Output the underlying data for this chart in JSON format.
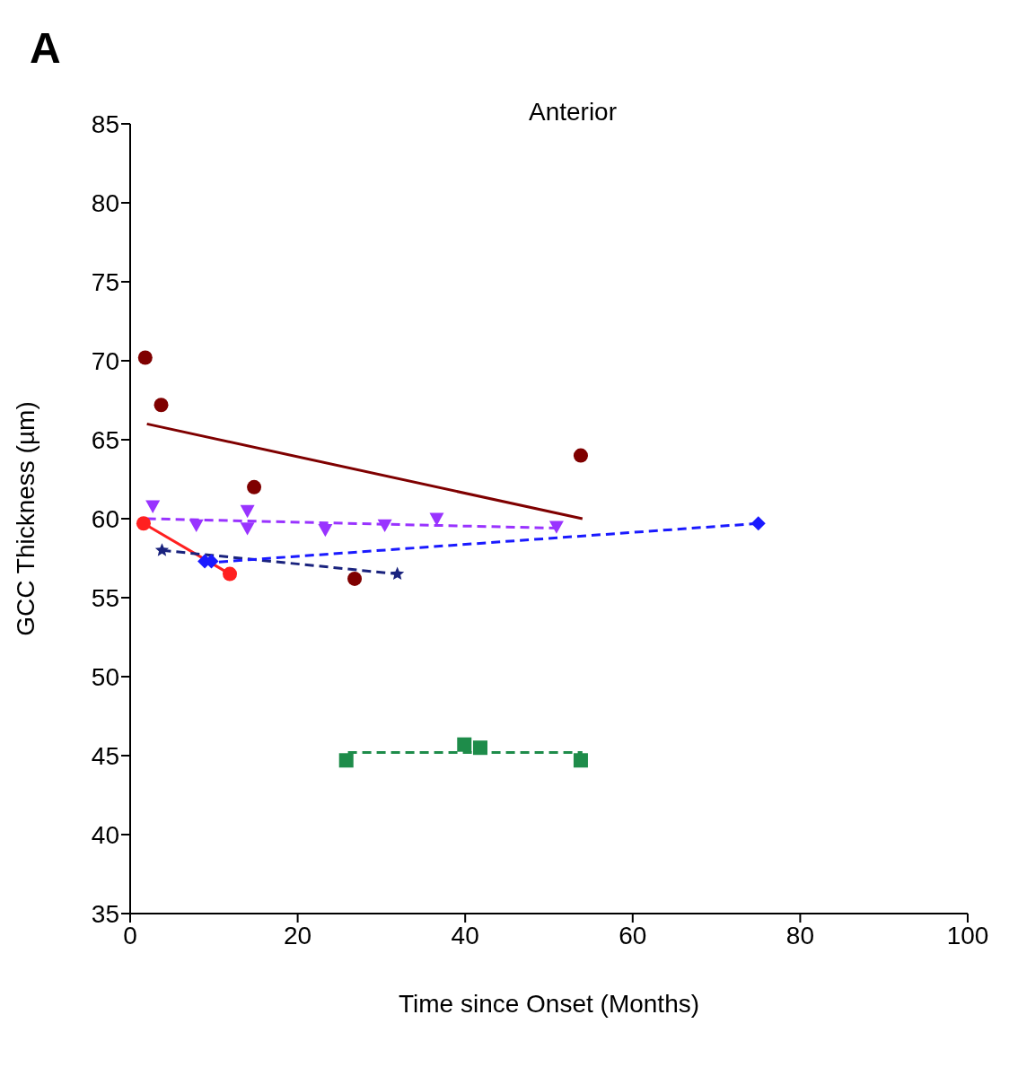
{
  "chart_data": {
    "type": "scatter",
    "title": "Anterior",
    "xlabel": "Time since Onset (Months)",
    "ylabel": "GCC Thickness (µm)",
    "annotations": [
      "A"
    ],
    "xlim": [
      0,
      100
    ],
    "xticks": [
      0,
      20,
      40,
      60,
      80,
      100
    ],
    "ylim": [
      35,
      85
    ],
    "yticks": [
      35,
      40,
      45,
      50,
      55,
      60,
      65,
      70,
      75,
      80,
      85
    ],
    "grid": false,
    "legend": false,
    "series": [
      {
        "color": "#7f0000",
        "marker": "circle",
        "x": [
          1.8,
          3.7,
          14.8,
          26.8,
          53.8
        ],
        "values": [
          70.2,
          67.2,
          62.0,
          56.2,
          64.0
        ]
      },
      {
        "type": "line",
        "color": "#7f0000",
        "marker": "none",
        "line_style": "solid",
        "x": [
          2,
          54
        ],
        "values": [
          66.0,
          60.0
        ]
      },
      {
        "color": "#9933ff",
        "marker": "triangle",
        "x": [
          2.7,
          7.9,
          14,
          14,
          23.3,
          30.4,
          36.6,
          50.9
        ],
        "values": [
          60.8,
          59.6,
          60.5,
          59.4,
          59.3,
          59.6,
          60.0,
          59.5
        ]
      },
      {
        "type": "line",
        "color": "#9933ff",
        "marker": "none",
        "line_style": "dashed",
        "x": [
          2,
          51
        ],
        "values": [
          60.0,
          59.4
        ]
      },
      {
        "type": "line",
        "color": "#ff2020",
        "marker": "circle",
        "line_style": "solid",
        "x": [
          1.6,
          11.9
        ],
        "values": [
          59.7,
          56.5
        ]
      },
      {
        "color": "#1a237e",
        "marker": "star",
        "x": [
          3.8,
          31.9
        ],
        "values": [
          58.0,
          56.5
        ]
      },
      {
        "type": "line",
        "color": "#1a237e",
        "marker": "none",
        "line_style": "dashed",
        "x": [
          3.8,
          31.9
        ],
        "values": [
          58.0,
          56.5
        ]
      },
      {
        "color": "#1a1aff",
        "marker": "diamond",
        "x": [
          8.9,
          9.7,
          75
        ],
        "values": [
          57.3,
          57.3,
          59.7
        ]
      },
      {
        "type": "line",
        "color": "#1a1aff",
        "marker": "none",
        "line_style": "dashed",
        "x": [
          8.9,
          75
        ],
        "values": [
          57.2,
          59.7
        ]
      },
      {
        "color": "#1e8c4a",
        "marker": "square",
        "x": [
          25.8,
          39.9,
          41.8,
          53.8
        ],
        "values": [
          44.7,
          45.7,
          45.5,
          44.7
        ]
      },
      {
        "type": "line",
        "color": "#1e8c4a",
        "marker": "none",
        "line_style": "dashed",
        "x": [
          26,
          54
        ],
        "values": [
          45.2,
          45.2
        ]
      }
    ]
  }
}
